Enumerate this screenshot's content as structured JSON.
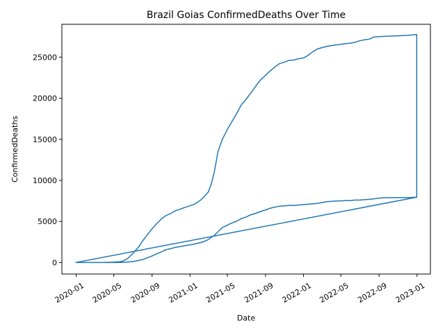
{
  "chart_data": {
    "type": "line",
    "title": "Brazil Goias ConfirmedDeaths Over Time",
    "xlabel": "Date",
    "ylabel": "ConfirmedDeaths",
    "xlim": [
      "2019-11-16",
      "2023-02-13"
    ],
    "ylim": [
      -1400,
      29000
    ],
    "grid": false,
    "x_ticks": [
      "2020-01",
      "2020-05",
      "2020-09",
      "2021-01",
      "2021-05",
      "2021-09",
      "2022-01",
      "2022-05",
      "2022-09",
      "2023-01"
    ],
    "y_ticks": [
      0,
      5000,
      10000,
      15000,
      20000,
      25000
    ],
    "color": "#1f77b4",
    "series": [
      {
        "x": [
          "2019-12-31",
          "2020-03-01",
          "2020-04-01",
          "2020-05-01",
          "2020-05-20",
          "2020-06-01",
          "2020-06-15",
          "2020-07-01",
          "2020-07-20",
          "2020-08-01",
          "2020-08-15",
          "2020-09-01",
          "2020-09-15",
          "2020-10-01",
          "2020-10-15",
          "2020-11-01",
          "2020-11-15",
          "2020-12-01",
          "2020-12-15",
          "2021-01-01",
          "2021-01-15",
          "2021-02-01",
          "2021-02-15",
          "2021-03-01",
          "2021-03-10",
          "2021-03-20",
          "2021-04-01",
          "2021-04-15",
          "2021-05-01",
          "2021-05-15",
          "2021-06-01",
          "2021-06-15",
          "2021-07-01",
          "2021-07-15",
          "2021-08-01",
          "2021-08-15",
          "2021-09-01",
          "2021-09-15",
          "2021-10-01",
          "2021-10-15",
          "2021-11-01",
          "2021-11-15",
          "2021-12-01",
          "2021-12-15",
          "2022-01-01",
          "2022-01-15",
          "2022-02-01",
          "2022-02-15",
          "2022-03-01",
          "2022-03-15",
          "2022-04-01",
          "2022-04-15",
          "2022-05-01",
          "2022-05-15",
          "2022-06-01",
          "2022-06-15",
          "2022-07-01",
          "2022-07-15",
          "2022-08-01",
          "2022-08-15",
          "2022-09-01",
          "2022-10-01",
          "2022-11-01",
          "2022-12-01",
          "2022-12-31",
          "2022-12-31",
          "2022-12-01",
          "2022-11-01",
          "2022-10-01",
          "2022-09-01",
          "2022-08-15",
          "2022-08-01",
          "2022-07-15",
          "2022-07-01",
          "2022-06-15",
          "2022-06-01",
          "2022-05-15",
          "2022-05-01",
          "2022-04-15",
          "2022-04-01",
          "2022-03-15",
          "2022-03-01",
          "2022-02-15",
          "2022-02-01",
          "2022-01-15",
          "2022-01-01",
          "2021-12-15",
          "2021-12-01",
          "2021-11-15",
          "2021-11-01",
          "2021-10-15",
          "2021-10-01",
          "2021-09-15",
          "2021-09-01",
          "2021-08-15",
          "2021-08-01",
          "2021-07-15",
          "2021-07-01",
          "2021-06-15",
          "2021-06-01",
          "2021-05-15",
          "2021-05-01",
          "2021-04-15",
          "2021-04-01",
          "2021-03-20",
          "2021-03-10",
          "2021-03-01",
          "2021-02-15",
          "2021-02-01",
          "2021-01-15",
          "2021-01-01",
          "2020-12-15",
          "2020-12-01",
          "2020-11-15",
          "2020-11-01",
          "2020-10-15",
          "2020-10-01",
          "2020-09-15",
          "2020-09-01",
          "2020-08-15",
          "2020-08-01",
          "2020-07-20",
          "2020-07-01",
          "2020-06-15",
          "2020-06-01",
          "2020-05-20",
          "2020-05-01",
          "2020-04-01",
          "2020-03-01",
          "2019-12-31",
          "2022-12-31"
        ],
        "y": [
          0,
          0,
          10,
          50,
          100,
          200,
          500,
          1100,
          1900,
          2600,
          3300,
          4100,
          4700,
          5300,
          5700,
          6000,
          6300,
          6500,
          6700,
          6900,
          7100,
          7500,
          8000,
          8600,
          9500,
          11000,
          13500,
          15000,
          16200,
          17100,
          18200,
          19200,
          19900,
          20600,
          21500,
          22200,
          22800,
          23300,
          23800,
          24200,
          24400,
          24600,
          24650,
          24800,
          24900,
          25200,
          25700,
          26000,
          26150,
          26300,
          26400,
          26500,
          26550,
          26650,
          26700,
          26800,
          27000,
          27100,
          27200,
          27450,
          27500,
          27550,
          27600,
          27650,
          27750,
          7950,
          7900,
          7900,
          7900,
          7850,
          7750,
          7700,
          7650,
          7600,
          7600,
          7550,
          7550,
          7500,
          7500,
          7450,
          7400,
          7300,
          7200,
          7150,
          7100,
          7050,
          7000,
          6950,
          6950,
          6900,
          6850,
          6750,
          6600,
          6400,
          6200,
          6000,
          5800,
          5550,
          5350,
          5050,
          4800,
          4550,
          4250,
          3750,
          3300,
          3050,
          2800,
          2550,
          2400,
          2250,
          2150,
          2050,
          1950,
          1850,
          1700,
          1550,
          1300,
          1050,
          800,
          550,
          350,
          250,
          120,
          60,
          30,
          10,
          0,
          0,
          0,
          0,
          7950
        ]
      }
    ]
  }
}
